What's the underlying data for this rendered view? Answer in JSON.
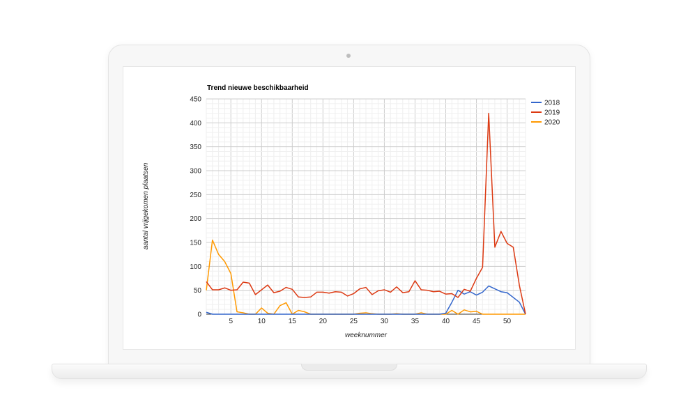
{
  "chart_data": {
    "type": "line",
    "title": "Trend nieuwe beschikbaarheid",
    "xlabel": "weeknummer",
    "ylabel": "aantal vrijgekomen plaatsen",
    "xlim": [
      1,
      53
    ],
    "ylim": [
      0,
      450
    ],
    "x_ticks": [
      5,
      10,
      15,
      20,
      25,
      30,
      35,
      40,
      45,
      50
    ],
    "y_ticks": [
      0,
      50,
      100,
      150,
      200,
      250,
      300,
      350,
      400,
      450
    ],
    "grid": true,
    "legend_position": "right",
    "x": [
      1,
      2,
      3,
      4,
      5,
      6,
      7,
      8,
      9,
      10,
      11,
      12,
      13,
      14,
      15,
      16,
      17,
      18,
      19,
      20,
      21,
      22,
      23,
      24,
      25,
      26,
      27,
      28,
      29,
      30,
      31,
      32,
      33,
      34,
      35,
      36,
      37,
      38,
      39,
      40,
      41,
      42,
      43,
      44,
      45,
      46,
      47,
      48,
      49,
      50,
      51,
      52,
      53
    ],
    "series": [
      {
        "name": "2018",
        "color": "#3366cc",
        "values": [
          4,
          0,
          0,
          0,
          0,
          0,
          0,
          0,
          0,
          0,
          0,
          0,
          0,
          0,
          0,
          0,
          0,
          0,
          0,
          0,
          0,
          0,
          0,
          0,
          0,
          0,
          0,
          0,
          0,
          0,
          0,
          0,
          0,
          0,
          0,
          0,
          0,
          0,
          0,
          2,
          25,
          50,
          42,
          47,
          40,
          46,
          59,
          53,
          47,
          45,
          35,
          25,
          0
        ]
      },
      {
        "name": "2019",
        "color": "#dc3912",
        "values": [
          68,
          51,
          51,
          55,
          50,
          51,
          67,
          65,
          41,
          51,
          61,
          45,
          48,
          56,
          52,
          36,
          35,
          36,
          46,
          46,
          44,
          47,
          46,
          38,
          43,
          53,
          56,
          41,
          49,
          51,
          46,
          57,
          45,
          47,
          70,
          51,
          50,
          47,
          48,
          42,
          43,
          35,
          52,
          48,
          75,
          98,
          420,
          140,
          173,
          148,
          140,
          60,
          0
        ]
      },
      {
        "name": "2020",
        "color": "#ff9900",
        "values": [
          50,
          155,
          125,
          110,
          85,
          5,
          3,
          0,
          0,
          13,
          2,
          0,
          18,
          24,
          0,
          8,
          5,
          0,
          0,
          0,
          0,
          0,
          0,
          0,
          0,
          2,
          3,
          1,
          0,
          0,
          0,
          1,
          0,
          0,
          0,
          3,
          0,
          0,
          0,
          0,
          8,
          0,
          9,
          5,
          6,
          0,
          0,
          0,
          0,
          0,
          0,
          0,
          0
        ]
      }
    ]
  }
}
